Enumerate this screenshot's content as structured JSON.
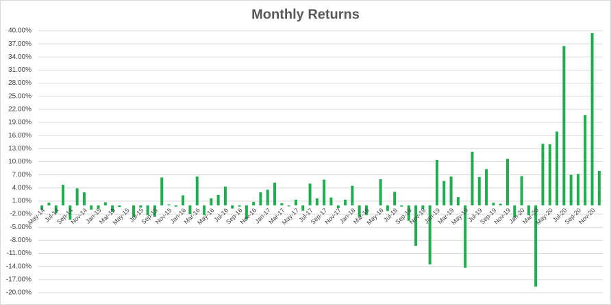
{
  "chart_data": {
    "type": "bar",
    "title": "Monthly Returns",
    "categories": [
      "May-14",
      null,
      "Jul-14",
      null,
      "Sep-14",
      null,
      "Nov-14",
      null,
      "Jan-15",
      null,
      "Mar-15",
      null,
      "May-15",
      null,
      "Jul-15",
      null,
      "Sep-15",
      null,
      "Nov-15",
      null,
      "Jan-16",
      null,
      "Mar-16",
      null,
      "May-16",
      null,
      "Jul-16",
      null,
      "Sep-16",
      null,
      "Nov-16",
      null,
      "Jan-17",
      null,
      "Mar-17",
      null,
      "May-17",
      null,
      "Jul-17",
      null,
      "Sep-17",
      null,
      "Nov-17",
      null,
      "Jan-18",
      null,
      "Mar-18",
      null,
      "May-18",
      null,
      "Jul-18",
      null,
      "Sep-18",
      null,
      "Nov-18",
      null,
      "Jan-19",
      null,
      "Mar-19",
      null,
      "May-19",
      null,
      "Jul-19",
      null,
      "Sep-19",
      null,
      "Nov-19",
      null,
      "Jan-20",
      null,
      "Mar-20",
      null,
      "May-20",
      null,
      "Jul-20",
      null,
      "Sep-20",
      null,
      "Nov-20",
      null
    ],
    "values": [
      -1.0,
      0.6,
      -1.8,
      4.7,
      -3.3,
      3.9,
      3.0,
      -1.0,
      -0.8,
      0.7,
      -1.5,
      -0.4,
      0,
      -2.7,
      -0.5,
      -2.2,
      -2.6,
      6.4,
      0.2,
      -0.3,
      2.3,
      -2.0,
      6.6,
      -2.2,
      1.6,
      2.4,
      4.3,
      -0.7,
      -0.3,
      -3.2,
      0.8,
      3.0,
      3.6,
      5.2,
      0.5,
      -0.2,
      1.3,
      -1.2,
      5.0,
      1.6,
      5.9,
      1.8,
      -0.6,
      1.3,
      4.5,
      -2.6,
      -2.2,
      0,
      6.0,
      -1.3,
      3.1,
      -0.3,
      -3.5,
      -9.3,
      -0.9,
      -13.5,
      10.4,
      5.6,
      6.6,
      1.9,
      -14.3,
      12.3,
      6.5,
      8.3,
      0.6,
      0.4,
      10.7,
      -2.8,
      6.7,
      -2.2,
      -18.6,
      14.1,
      14.0,
      16.9,
      36.5,
      7.0,
      7.2,
      20.7,
      39.5,
      7.9
    ],
    "color": "#1fae4f",
    "ylim": [
      -20,
      40
    ],
    "yticks": [
      {
        "value": -20,
        "label": "-20.00%"
      },
      {
        "value": -17,
        "label": "-17.00%"
      },
      {
        "value": -14,
        "label": "-14.00%"
      },
      {
        "value": -11,
        "label": "-11.00%"
      },
      {
        "value": -8,
        "label": "-8.00%"
      },
      {
        "value": -5,
        "label": "-5.00%"
      },
      {
        "value": -2,
        "label": "-2.00%"
      },
      {
        "value": 1,
        "label": "1.00%"
      },
      {
        "value": 4,
        "label": "4.00%"
      },
      {
        "value": 7,
        "label": "7.00%"
      },
      {
        "value": 10,
        "label": "10.00%"
      },
      {
        "value": 13,
        "label": "13.00%"
      },
      {
        "value": 16,
        "label": "16.00%"
      },
      {
        "value": 19,
        "label": "19.00%"
      },
      {
        "value": 22,
        "label": "22.00%"
      },
      {
        "value": 25,
        "label": "25.00%"
      },
      {
        "value": 28,
        "label": "28.00%"
      },
      {
        "value": 31,
        "label": "31.00%"
      },
      {
        "value": 34,
        "label": "34.00%"
      },
      {
        "value": 37,
        "label": "37.00%"
      },
      {
        "value": 40,
        "label": "40.00%"
      }
    ],
    "grid": true
  }
}
